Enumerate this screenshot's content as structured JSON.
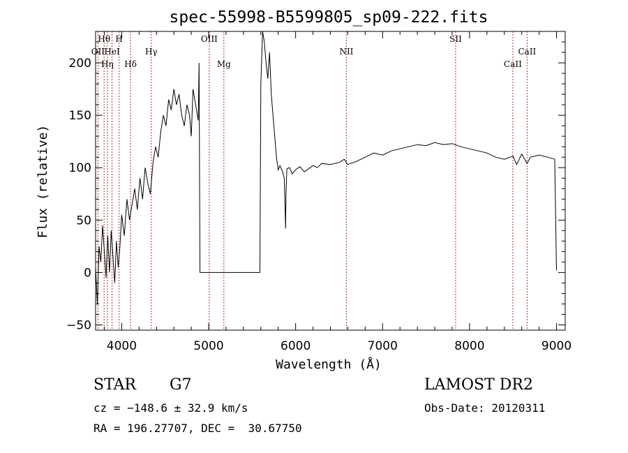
{
  "title": "spec-55998-B5599805_sp09-222.fits",
  "info": {
    "object_class": "STAR",
    "subclass": "G7",
    "survey": "LAMOST DR2",
    "cz": "cz = −148.6 ± 32.9 km/s",
    "obs_date": "Obs-Date: 20120311",
    "coords": "RA = 196.27707, DEC =  30.67750"
  },
  "chart_data": {
    "type": "line",
    "xlabel": "Wavelength (Å)",
    "ylabel": "Flux (relative)",
    "xlim": [
      3700,
      9100
    ],
    "ylim": [
      -55,
      230
    ],
    "xticks": [
      4000,
      5000,
      6000,
      7000,
      8000,
      9000
    ],
    "yticks": [
      -50,
      0,
      50,
      100,
      150,
      200
    ],
    "ytick_labels": [
      "−50",
      "0",
      "50",
      "100",
      "150",
      "200"
    ],
    "grid": false,
    "line_color": "#000000",
    "marker_color": "#b03030",
    "spectral_lines": [
      {
        "label": "Hθ",
        "x": 3798,
        "row": 0
      },
      {
        "label": "H",
        "x": 3970,
        "row": 0
      },
      {
        "label": "OII",
        "x": 3727,
        "row": 1
      },
      {
        "label": "HeI",
        "x": 3889,
        "row": 1
      },
      {
        "label": "Hγ",
        "x": 4340,
        "row": 1
      },
      {
        "label": "Hη",
        "x": 3835,
        "row": 2
      },
      {
        "label": "Hδ",
        "x": 4102,
        "row": 2
      },
      {
        "label": "OIII",
        "x": 5007,
        "row": 0
      },
      {
        "label": "Mg",
        "x": 5175,
        "row": 2
      },
      {
        "label": "NII",
        "x": 6584,
        "row": 1
      },
      {
        "label": "SII",
        "x": 7840,
        "row": 0
      },
      {
        "label": "CaII",
        "x": 8662,
        "row": 1
      },
      {
        "label": "CaII",
        "x": 8498,
        "row": 2
      }
    ],
    "series": [
      {
        "x": [
          3700,
          3720,
          3740,
          3760,
          3780,
          3800,
          3820,
          3840,
          3860,
          3880,
          3900,
          3920,
          3940,
          3960,
          3980,
          4000,
          4030,
          4060,
          4090,
          4120,
          4150,
          4180,
          4210,
          4240,
          4270,
          4300,
          4330,
          4360,
          4390,
          4420,
          4450,
          4480,
          4510,
          4540,
          4570,
          4600,
          4630,
          4660,
          4690,
          4720,
          4750,
          4780,
          4800,
          4820,
          4840,
          4860,
          4880,
          4890,
          4900,
          5000,
          5200,
          5400,
          5590,
          5600,
          5620,
          5640,
          5660,
          5680,
          5700,
          5720,
          5740,
          5760,
          5780,
          5800,
          5820,
          5850,
          5870,
          5885,
          5890,
          5895,
          5900,
          5930,
          5960,
          6000,
          6050,
          6100,
          6150,
          6200,
          6250,
          6300,
          6400,
          6500,
          6560,
          6600,
          6700,
          6800,
          6900,
          7000,
          7100,
          7200,
          7300,
          7400,
          7500,
          7600,
          7700,
          7800,
          7900,
          8000,
          8100,
          8200,
          8300,
          8400,
          8500,
          8542,
          8600,
          8662,
          8700,
          8800,
          8900,
          8980,
          9000
        ],
        "values": [
          5,
          -30,
          25,
          10,
          45,
          20,
          -5,
          35,
          0,
          40,
          15,
          -10,
          30,
          5,
          25,
          55,
          35,
          70,
          50,
          65,
          80,
          60,
          90,
          70,
          100,
          85,
          75,
          105,
          120,
          110,
          135,
          150,
          140,
          165,
          155,
          175,
          160,
          170,
          150,
          140,
          160,
          150,
          130,
          175,
          165,
          155,
          145,
          200,
          0,
          0,
          0,
          0,
          0,
          180,
          230,
          220,
          200,
          185,
          210,
          170,
          150,
          130,
          110,
          98,
          102,
          96,
          90,
          42,
          75,
          90,
          99,
          100,
          94,
          98,
          101,
          96,
          99,
          102,
          100,
          104,
          103,
          105,
          108,
          103,
          106,
          110,
          114,
          112,
          116,
          118,
          120,
          122,
          121,
          124,
          122,
          123,
          120,
          118,
          116,
          114,
          110,
          108,
          111,
          103,
          113,
          104,
          110,
          112,
          110,
          108,
          2
        ]
      }
    ]
  }
}
